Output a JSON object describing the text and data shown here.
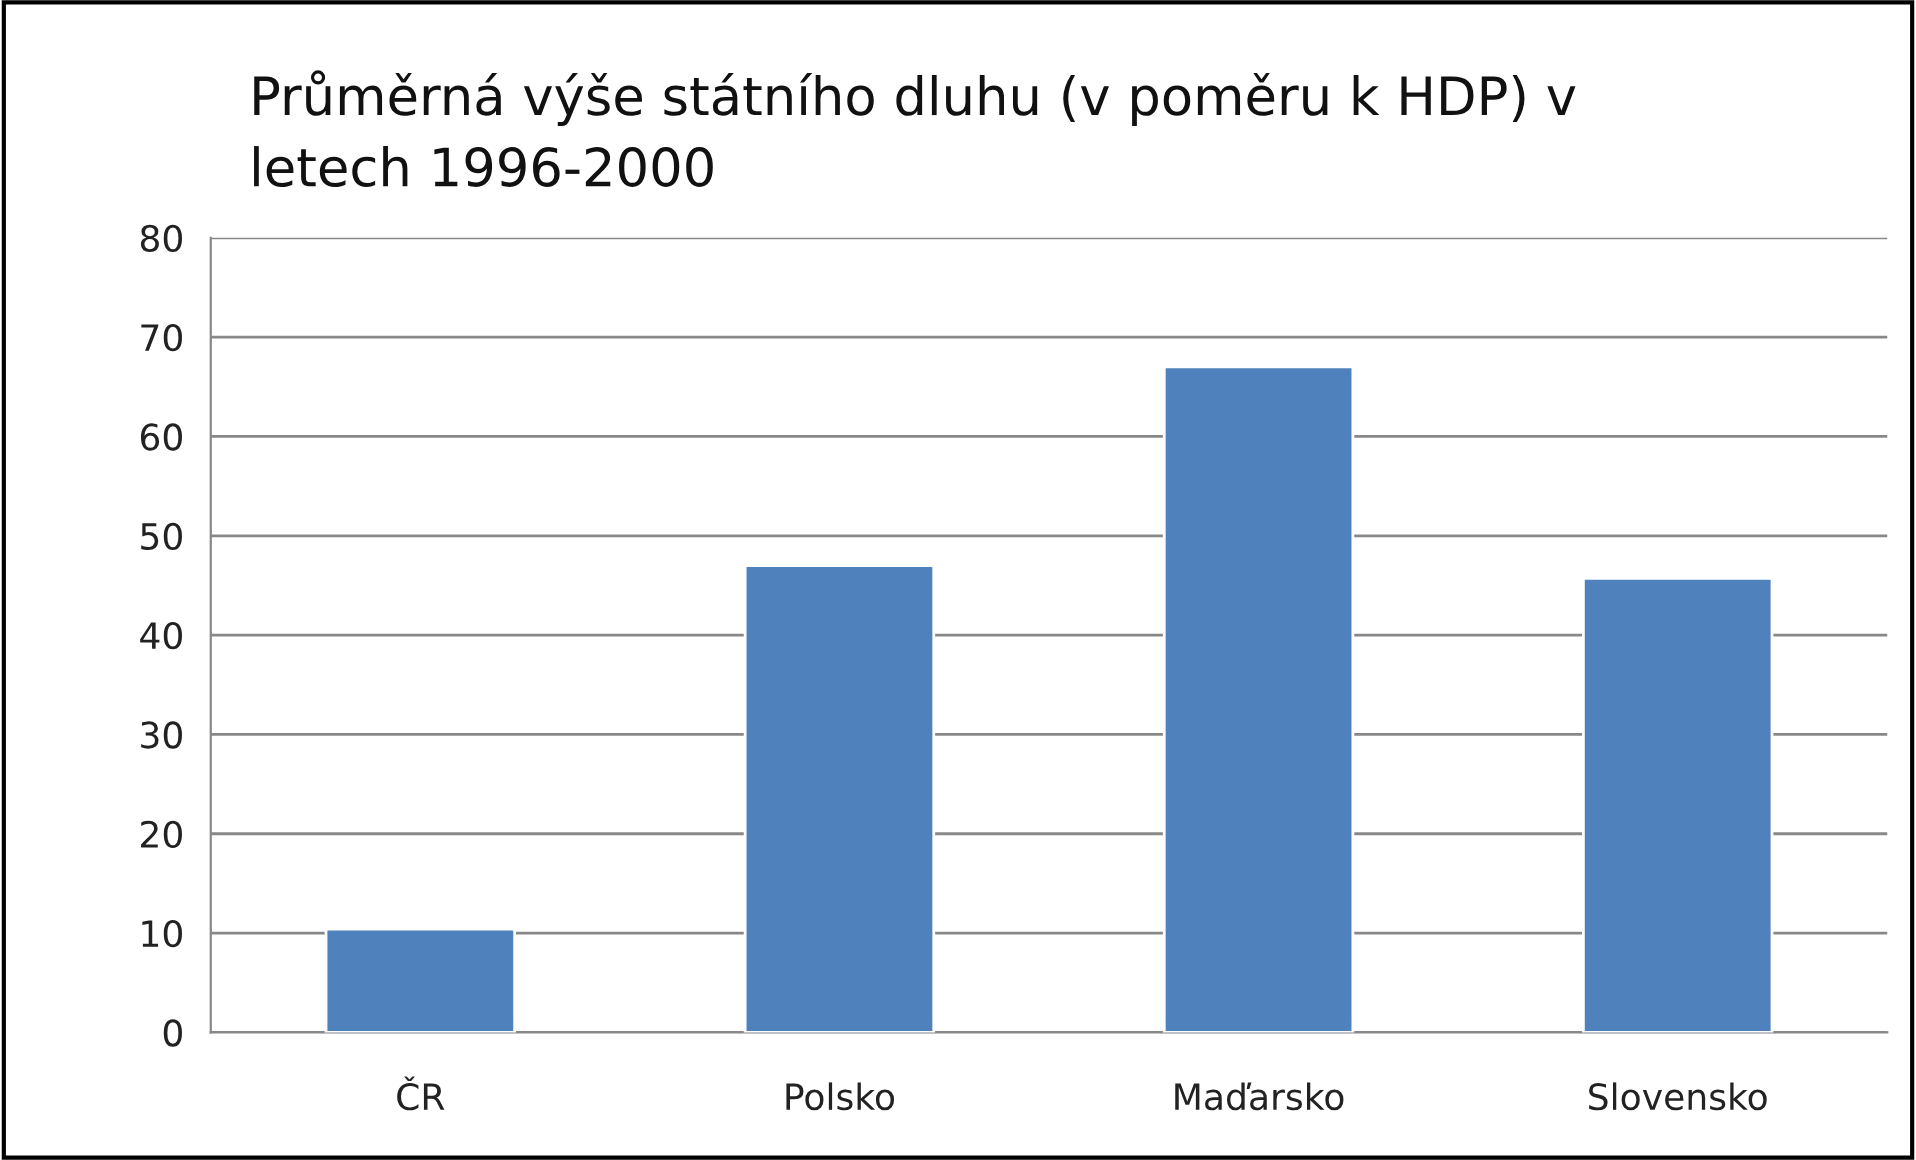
{
  "chart_data": {
    "type": "bar",
    "title": "Průměrná výše státního dluhu (v poměru k HDP) v\nletech 1996-2000",
    "categories": [
      "ČR",
      "Polsko",
      "Maďarsko",
      "Slovensko"
    ],
    "values": [
      10.4,
      47,
      67,
      45.7
    ],
    "color": "#4f81bd",
    "ylim": [
      0,
      80
    ],
    "yticks": [
      0,
      10,
      20,
      30,
      40,
      50,
      60,
      70,
      80
    ],
    "grid": "y",
    "legend": false
  }
}
